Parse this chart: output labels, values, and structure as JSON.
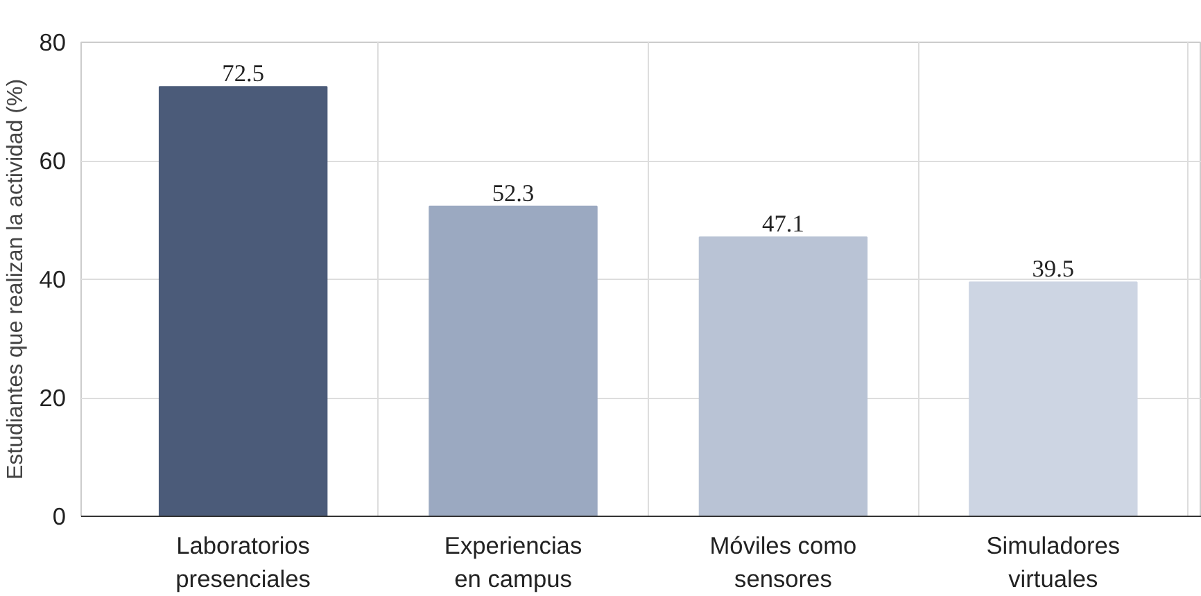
{
  "chart_data": {
    "type": "bar",
    "ylabel": "Estudiantes que realizan la actividad (%)",
    "categories": [
      "Laboratorios\npresenciales",
      "Experiencias\nen campus",
      "Móviles como\nsensores",
      "Simuladores\nvirtuales"
    ],
    "values": [
      72.5,
      52.3,
      47.1,
      39.5
    ],
    "colors": [
      "#4b5b79",
      "#9ba9c1",
      "#b9c3d5",
      "#cdd5e3"
    ],
    "ylim": [
      0,
      80
    ],
    "yticks": [
      0,
      20,
      40,
      60,
      80
    ],
    "grid": true,
    "data_labels": true
  }
}
